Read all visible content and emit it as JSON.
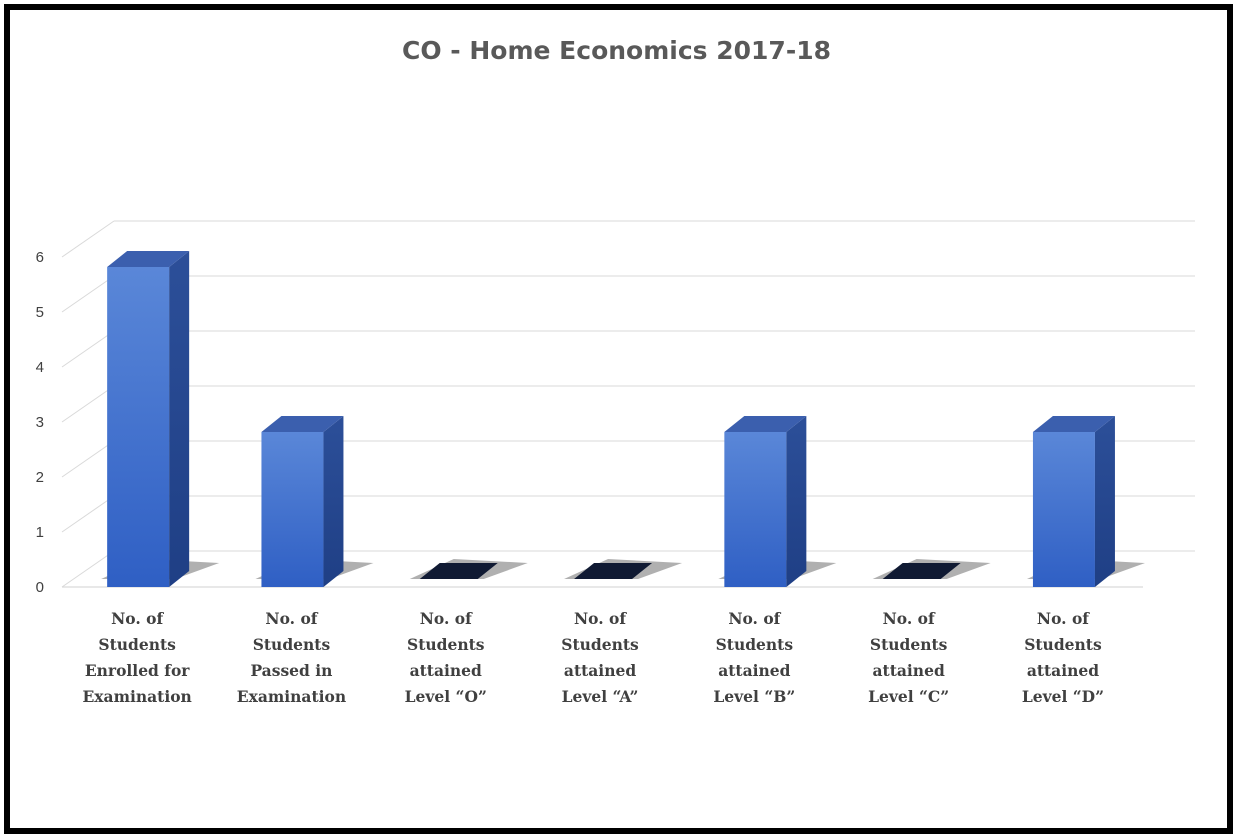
{
  "chart_data": {
    "type": "bar",
    "title": "CO - Home Economics 2017-18",
    "categories": [
      [
        "No. of",
        "Students",
        "Enrolled for",
        "Examination"
      ],
      [
        "No. of",
        "Students",
        "Passed in",
        "Examination"
      ],
      [
        "No. of",
        "Students",
        "attained",
        "Level “O”"
      ],
      [
        "No. of",
        "Students",
        "attained",
        "Level “A”"
      ],
      [
        "No. of",
        "Students",
        "attained",
        "Level “B”"
      ],
      [
        "No. of",
        "Students",
        "attained",
        "Level “C”"
      ],
      [
        "No. of",
        "Students",
        "attained",
        "Level “D”"
      ]
    ],
    "values": [
      6,
      3,
      0,
      0,
      3,
      0,
      3
    ],
    "yticks": [
      "0",
      "1",
      "2",
      "3",
      "4",
      "5",
      "6"
    ],
    "ylim": [
      0,
      6
    ],
    "grid": true,
    "three_d": true,
    "bar_color": "#3a6bd1",
    "xlabel": "",
    "ylabel": ""
  }
}
